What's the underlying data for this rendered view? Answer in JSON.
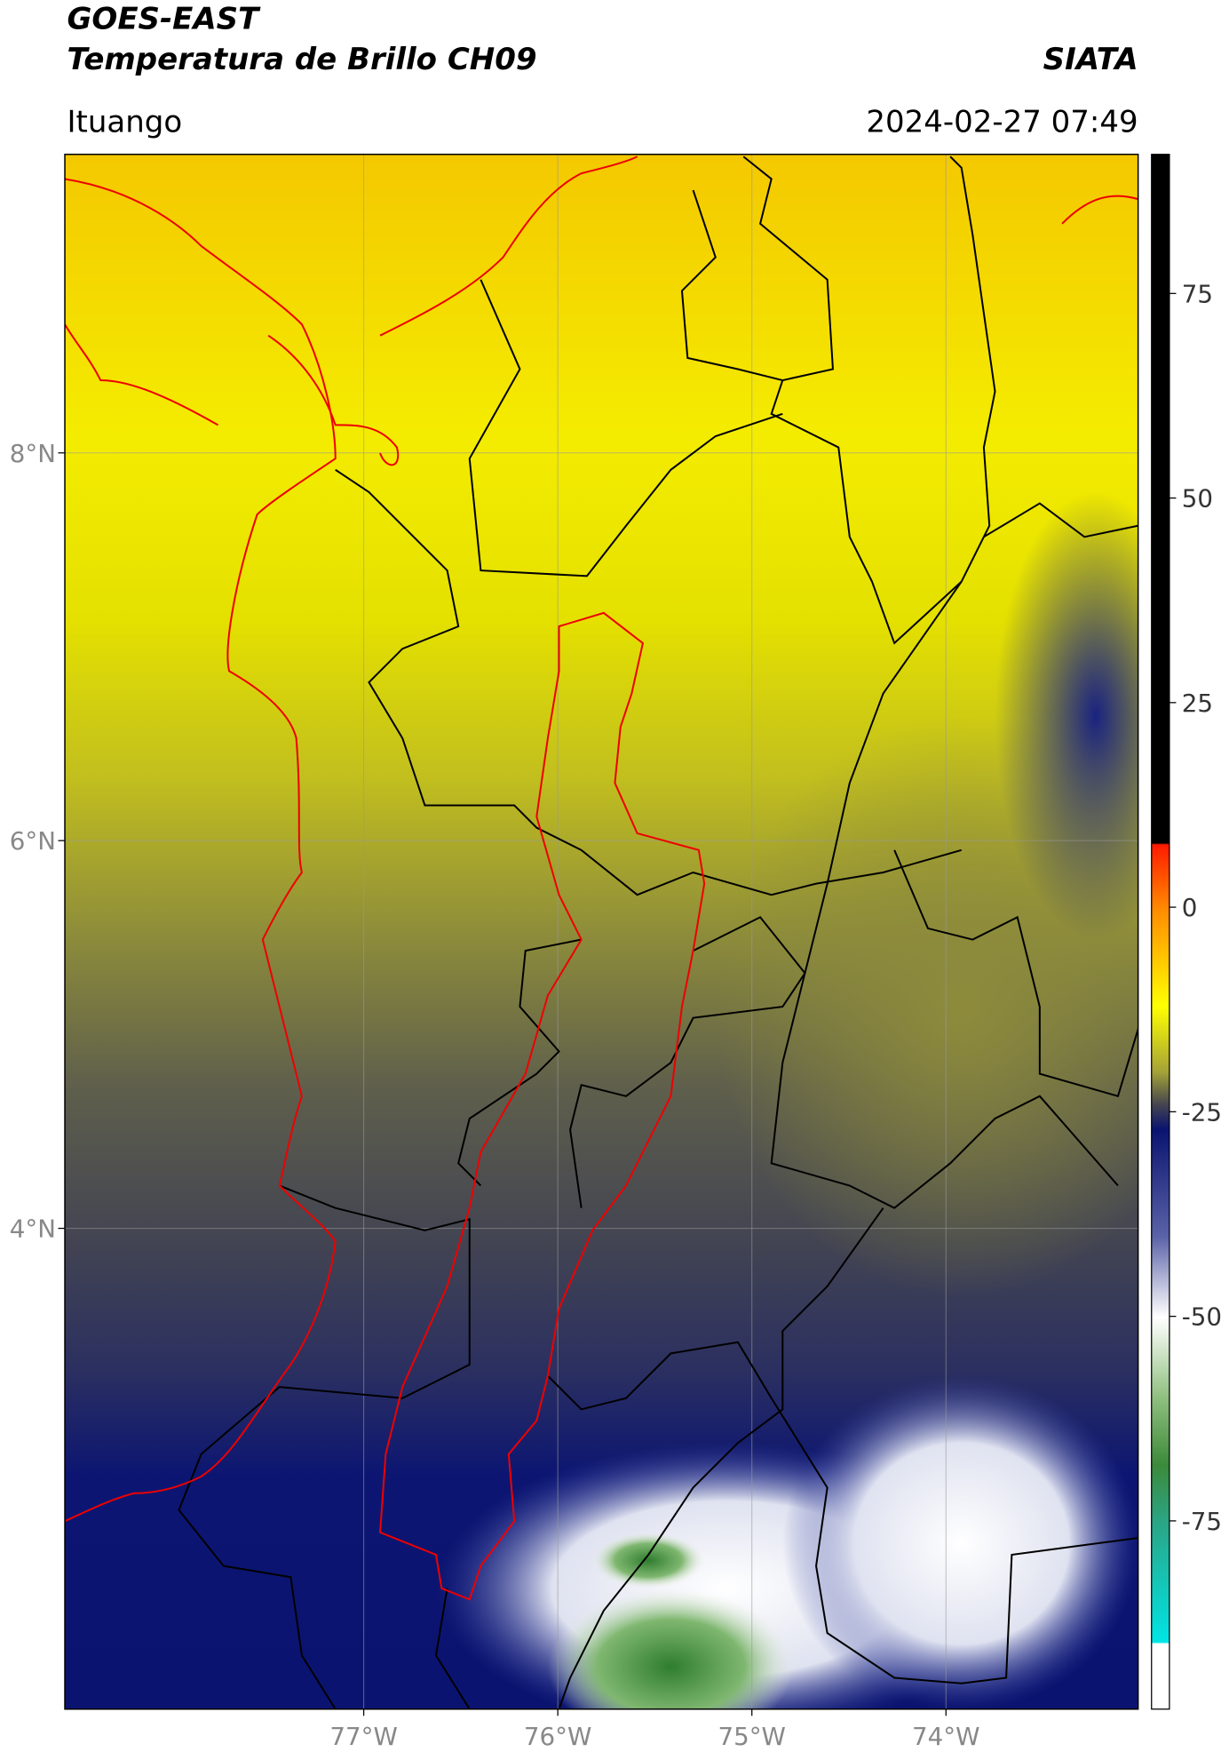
{
  "header": {
    "title": "GOES-EAST",
    "subtitle": "Temperatura de Brillo CH09",
    "source": "SIATA",
    "location": "Ituango",
    "datetime": "2024-02-27 07:49"
  },
  "map": {
    "type": "map",
    "xlim": [
      -78.54,
      -73.01
    ],
    "ylim": [
      1.52,
      9.54
    ],
    "xticks": [
      {
        "value": -77,
        "label": "77°W"
      },
      {
        "value": -76,
        "label": "76°W"
      },
      {
        "value": -75,
        "label": "75°W"
      },
      {
        "value": -74,
        "label": "74°W"
      }
    ],
    "yticks": [
      {
        "value": 8,
        "label": "8°N"
      },
      {
        "value": 6,
        "label": "6°N"
      },
      {
        "value": 4,
        "label": "4°N"
      }
    ],
    "grid": true
  },
  "colorbar": {
    "lim": [
      -98,
      92
    ],
    "ticks": [
      75,
      50,
      25,
      0,
      -25,
      -50,
      -75
    ]
  }
}
